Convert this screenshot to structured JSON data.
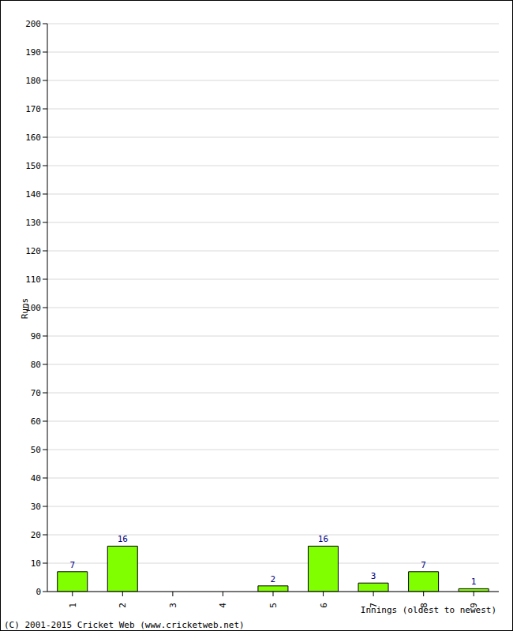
{
  "chart_data": {
    "type": "bar",
    "categories": [
      "1",
      "2",
      "3",
      "4",
      "5",
      "6",
      "7",
      "8",
      "9"
    ],
    "values": [
      7,
      16,
      0,
      0,
      2,
      16,
      3,
      7,
      1
    ],
    "color": "#80ff00",
    "ylim": [
      0,
      200
    ],
    "yticks": [
      0,
      10,
      20,
      30,
      40,
      50,
      60,
      70,
      80,
      90,
      100,
      110,
      120,
      130,
      140,
      150,
      160,
      170,
      180,
      190,
      200
    ],
    "grid": true,
    "data_labels": true,
    "x_label": "Innings (oldest to newest)",
    "y_label": "Runs",
    "annotations": [
      "(C) 2001-2015 Cricket Web (www.cricketweb.net)"
    ]
  }
}
